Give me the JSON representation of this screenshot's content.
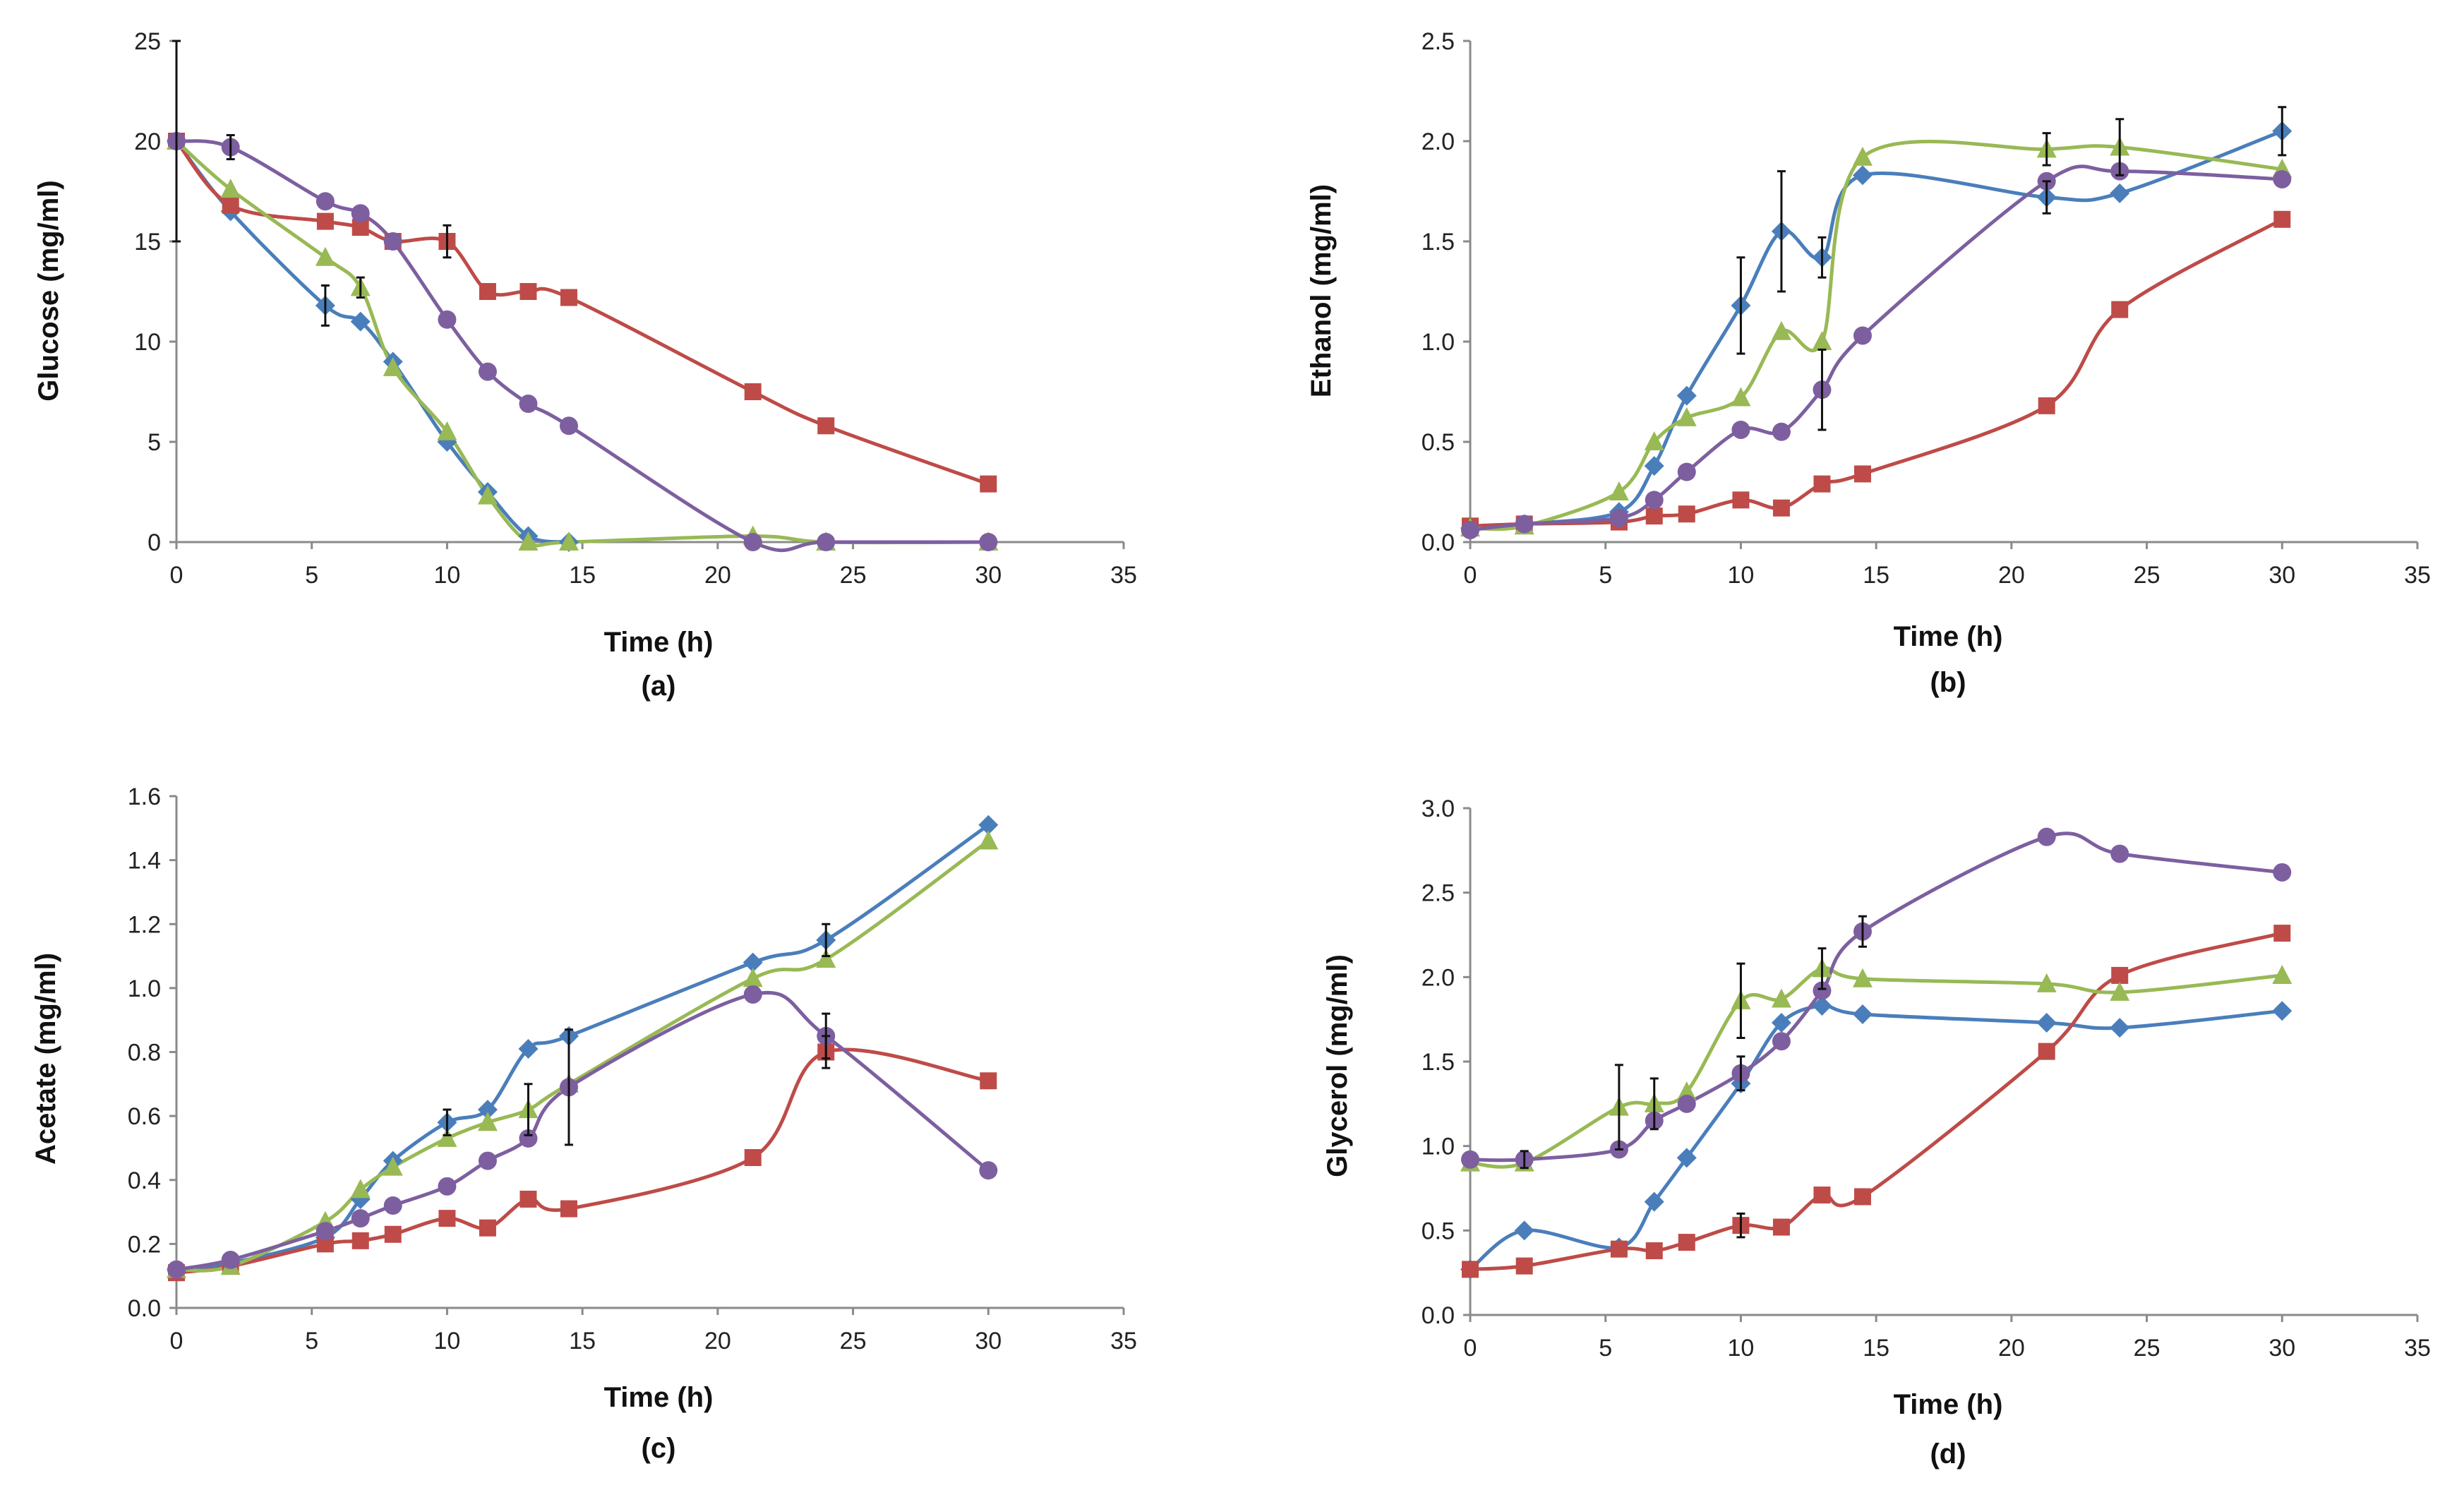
{
  "colors": {
    "blue": "#4a7ebb",
    "red": "#be4b48",
    "green": "#98b954",
    "purple": "#7d5fa0",
    "axis": "#8a8a8a",
    "text": "#222222"
  },
  "chart_data": [
    {
      "type": "line",
      "panel_label": "(a)",
      "xlabel": "Time (h)",
      "ylabel": "Glucose (mg/ml)",
      "xlim": [
        0,
        35
      ],
      "ylim": [
        0,
        25
      ],
      "xticks": [
        0,
        5,
        10,
        15,
        20,
        25,
        30,
        35
      ],
      "yticks": [
        0,
        5,
        10,
        15,
        20,
        25
      ],
      "xtick_labels": [
        "0",
        "5",
        "10",
        "15",
        "20",
        "25",
        "30",
        "35"
      ],
      "ytick_labels": [
        "0",
        "5",
        "10",
        "15",
        "20",
        "25"
      ],
      "series": [
        {
          "name": "blue-diamond",
          "color": "blue",
          "marker": "diamond",
          "x": [
            0,
            2,
            5.5,
            6.8,
            8,
            10,
            11.5,
            13,
            14.5
          ],
          "y": [
            20,
            16.5,
            11.8,
            11,
            9,
            5,
            2.5,
            0.3,
            0
          ]
        },
        {
          "name": "green-triangle",
          "color": "green",
          "marker": "triangle",
          "x": [
            0,
            2,
            5.5,
            6.8,
            8,
            10,
            11.5,
            13,
            14.5,
            21.3,
            24,
            30
          ],
          "y": [
            20,
            17.6,
            14.2,
            12.7,
            8.7,
            5.5,
            2.3,
            0,
            0,
            0.3,
            0,
            0
          ]
        },
        {
          "name": "purple-circle",
          "color": "purple",
          "marker": "circle",
          "x": [
            0,
            2,
            5.5,
            6.8,
            8,
            10,
            11.5,
            13,
            14.5,
            21.3,
            24,
            30
          ],
          "y": [
            20,
            19.7,
            17,
            16.4,
            15,
            11.1,
            8.5,
            6.9,
            5.8,
            0,
            0,
            0
          ]
        },
        {
          "name": "red-square",
          "color": "red",
          "marker": "square",
          "x": [
            0,
            2,
            5.5,
            6.8,
            8,
            10,
            11.5,
            13,
            14.5,
            21.3,
            24,
            30
          ],
          "y": [
            20,
            16.8,
            16,
            15.7,
            15,
            15,
            12.5,
            12.5,
            12.2,
            7.5,
            5.8,
            2.9
          ]
        }
      ],
      "error_bars": [
        {
          "x": 0,
          "y": 20,
          "err": 5
        },
        {
          "x": 2,
          "y": 19.7,
          "err": 0.6
        },
        {
          "x": 5.5,
          "y": 11.8,
          "err": 1
        },
        {
          "x": 6.8,
          "y": 12.7,
          "err": 0.5
        },
        {
          "x": 10,
          "y": 15,
          "err": 0.8
        }
      ]
    },
    {
      "type": "line",
      "panel_label": "(b)",
      "xlabel": "Time (h)",
      "ylabel": "Ethanol (mg/ml)",
      "xlim": [
        0,
        35
      ],
      "ylim": [
        0,
        2.5
      ],
      "xticks": [
        0,
        5,
        10,
        15,
        20,
        25,
        30,
        35
      ],
      "yticks": [
        0,
        0.5,
        1.0,
        1.5,
        2.0,
        2.5
      ],
      "xtick_labels": [
        "0",
        "5",
        "10",
        "15",
        "20",
        "25",
        "30",
        "35"
      ],
      "ytick_labels": [
        "0.0",
        "0.5",
        "1.0",
        "1.5",
        "2.0",
        "2.5"
      ],
      "series": [
        {
          "name": "blue-diamond",
          "color": "blue",
          "marker": "diamond",
          "x": [
            0,
            2,
            5.5,
            6.8,
            8,
            10,
            11.5,
            13,
            14.5,
            21.3,
            24,
            30
          ],
          "y": [
            0.07,
            0.09,
            0.15,
            0.38,
            0.73,
            1.18,
            1.55,
            1.42,
            1.83,
            1.72,
            1.74,
            2.05
          ]
        },
        {
          "name": "green-triangle",
          "color": "green",
          "marker": "triangle",
          "x": [
            0,
            2,
            5.5,
            6.8,
            8,
            10,
            11.5,
            13,
            14.5,
            21.3,
            24,
            30
          ],
          "y": [
            0.07,
            0.08,
            0.25,
            0.5,
            0.62,
            0.72,
            1.05,
            1.0,
            1.92,
            1.96,
            1.97,
            1.86
          ]
        },
        {
          "name": "purple-circle",
          "color": "purple",
          "marker": "circle",
          "x": [
            0,
            2,
            5.5,
            6.8,
            8,
            10,
            11.5,
            13,
            14.5,
            21.3,
            24,
            30
          ],
          "y": [
            0.06,
            0.09,
            0.12,
            0.21,
            0.35,
            0.56,
            0.55,
            0.76,
            1.03,
            1.8,
            1.85,
            1.81
          ]
        },
        {
          "name": "red-square",
          "color": "red",
          "marker": "square",
          "x": [
            0,
            2,
            5.5,
            6.8,
            8,
            10,
            11.5,
            13,
            14.5,
            21.3,
            24,
            30
          ],
          "y": [
            0.08,
            0.09,
            0.1,
            0.13,
            0.14,
            0.21,
            0.17,
            0.29,
            0.34,
            0.68,
            1.16,
            1.61
          ]
        }
      ],
      "error_bars": [
        {
          "x": 10,
          "y": 1.18,
          "err": 0.24
        },
        {
          "x": 11.5,
          "y": 1.55,
          "err": 0.3
        },
        {
          "x": 13,
          "y": 0.76,
          "err": 0.2
        },
        {
          "x": 13,
          "y": 1.42,
          "err": 0.1
        },
        {
          "x": 21.3,
          "y": 1.72,
          "err": 0.08
        },
        {
          "x": 21.3,
          "y": 1.96,
          "err": 0.08
        },
        {
          "x": 24,
          "y": 1.97,
          "err": 0.14
        },
        {
          "x": 30,
          "y": 2.05,
          "err": 0.12
        }
      ]
    },
    {
      "type": "line",
      "panel_label": "(c)",
      "xlabel": "Time (h)",
      "ylabel": "Acetate (mg/ml)",
      "xlim": [
        0,
        35
      ],
      "ylim": [
        0,
        1.6
      ],
      "xticks": [
        0,
        5,
        10,
        15,
        20,
        25,
        30,
        35
      ],
      "yticks": [
        0,
        0.2,
        0.4,
        0.6,
        0.8,
        1.0,
        1.2,
        1.4,
        1.6
      ],
      "xtick_labels": [
        "0",
        "5",
        "10",
        "15",
        "20",
        "25",
        "30",
        "35"
      ],
      "ytick_labels": [
        "0.0",
        "0.2",
        "0.4",
        "0.6",
        "0.8",
        "1.0",
        "1.2",
        "1.4",
        "1.6"
      ],
      "series": [
        {
          "name": "blue-diamond",
          "color": "blue",
          "marker": "diamond",
          "x": [
            0,
            2,
            5.5,
            6.8,
            8,
            10,
            11.5,
            13,
            14.5,
            21.3,
            24,
            30
          ],
          "y": [
            0.12,
            0.14,
            0.22,
            0.34,
            0.46,
            0.58,
            0.62,
            0.81,
            0.85,
            1.08,
            1.15,
            1.51
          ]
        },
        {
          "name": "green-triangle",
          "color": "green",
          "marker": "triangle",
          "x": [
            0,
            2,
            5.5,
            6.8,
            8,
            10,
            11.5,
            13,
            14.5,
            21.3,
            24,
            30
          ],
          "y": [
            0.12,
            0.13,
            0.27,
            0.37,
            0.44,
            0.53,
            0.58,
            0.62,
            0.7,
            1.03,
            1.09,
            1.46
          ]
        },
        {
          "name": "purple-circle",
          "color": "purple",
          "marker": "circle",
          "x": [
            0,
            2,
            5.5,
            6.8,
            8,
            10,
            11.5,
            13,
            14.5,
            21.3,
            24,
            30
          ],
          "y": [
            0.12,
            0.15,
            0.24,
            0.28,
            0.32,
            0.38,
            0.46,
            0.53,
            0.69,
            0.98,
            0.85,
            0.43
          ]
        },
        {
          "name": "red-square",
          "color": "red",
          "marker": "square",
          "x": [
            0,
            2,
            5.5,
            6.8,
            8,
            10,
            11.5,
            13,
            14.5,
            21.3,
            24,
            30
          ],
          "y": [
            0.11,
            0.13,
            0.2,
            0.21,
            0.23,
            0.28,
            0.25,
            0.34,
            0.31,
            0.47,
            0.8,
            0.71
          ]
        }
      ],
      "error_bars": [
        {
          "x": 10,
          "y": 0.58,
          "err": 0.04
        },
        {
          "x": 13,
          "y": 0.62,
          "err": 0.08
        },
        {
          "x": 14.5,
          "y": 0.69,
          "err": 0.18
        },
        {
          "x": 24,
          "y": 1.15,
          "err": 0.05
        },
        {
          "x": 24,
          "y": 0.85,
          "err": 0.07
        },
        {
          "x": 24,
          "y": 0.8,
          "err": 0.05
        }
      ]
    },
    {
      "type": "line",
      "panel_label": "(d)",
      "xlabel": "Time (h)",
      "ylabel": "Glycerol (mg/ml)",
      "xlim": [
        0,
        35
      ],
      "ylim": [
        0,
        3.0
      ],
      "xticks": [
        0,
        5,
        10,
        15,
        20,
        25,
        30,
        35
      ],
      "yticks": [
        0,
        0.5,
        1.0,
        1.5,
        2.0,
        2.5,
        3.0
      ],
      "xtick_labels": [
        "0",
        "5",
        "10",
        "15",
        "20",
        "25",
        "30",
        "35"
      ],
      "ytick_labels": [
        "0.0",
        "0.5",
        "1.0",
        "1.5",
        "2.0",
        "2.5",
        "3.0"
      ],
      "series": [
        {
          "name": "blue-diamond",
          "color": "blue",
          "marker": "diamond",
          "x": [
            0,
            2,
            5.5,
            6.8,
            8,
            10,
            11.5,
            13,
            14.5,
            21.3,
            24,
            30
          ],
          "y": [
            0.27,
            0.5,
            0.4,
            0.67,
            0.93,
            1.37,
            1.73,
            1.83,
            1.78,
            1.73,
            1.7,
            1.8
          ]
        },
        {
          "name": "green-triangle",
          "color": "green",
          "marker": "triangle",
          "x": [
            0,
            2,
            5.5,
            6.8,
            8,
            10,
            11.5,
            13,
            14.5,
            21.3,
            24,
            30
          ],
          "y": [
            0.9,
            0.9,
            1.23,
            1.25,
            1.32,
            1.86,
            1.87,
            2.05,
            1.99,
            1.96,
            1.91,
            2.01
          ]
        },
        {
          "name": "purple-circle",
          "color": "purple",
          "marker": "circle",
          "x": [
            0,
            2,
            5.5,
            6.8,
            8,
            10,
            11.5,
            13,
            14.5,
            21.3,
            24,
            30
          ],
          "y": [
            0.92,
            0.92,
            0.98,
            1.15,
            1.25,
            1.43,
            1.62,
            1.92,
            2.27,
            2.83,
            2.73,
            2.62
          ]
        },
        {
          "name": "red-square",
          "color": "red",
          "marker": "square",
          "x": [
            0,
            2,
            5.5,
            6.8,
            8,
            10,
            11.5,
            13,
            14.5,
            21.3,
            24,
            30
          ],
          "y": [
            0.27,
            0.29,
            0.39,
            0.38,
            0.43,
            0.53,
            0.52,
            0.71,
            0.7,
            1.56,
            2.01,
            2.26
          ]
        }
      ],
      "error_bars": [
        {
          "x": 2,
          "y": 0.92,
          "err": 0.05
        },
        {
          "x": 5.5,
          "y": 1.23,
          "err": 0.25
        },
        {
          "x": 6.8,
          "y": 1.25,
          "err": 0.15
        },
        {
          "x": 10,
          "y": 1.86,
          "err": 0.22
        },
        {
          "x": 10,
          "y": 1.43,
          "err": 0.1
        },
        {
          "x": 10,
          "y": 0.53,
          "err": 0.07
        },
        {
          "x": 13,
          "y": 2.05,
          "err": 0.12
        },
        {
          "x": 14.5,
          "y": 2.27,
          "err": 0.09
        }
      ]
    }
  ]
}
